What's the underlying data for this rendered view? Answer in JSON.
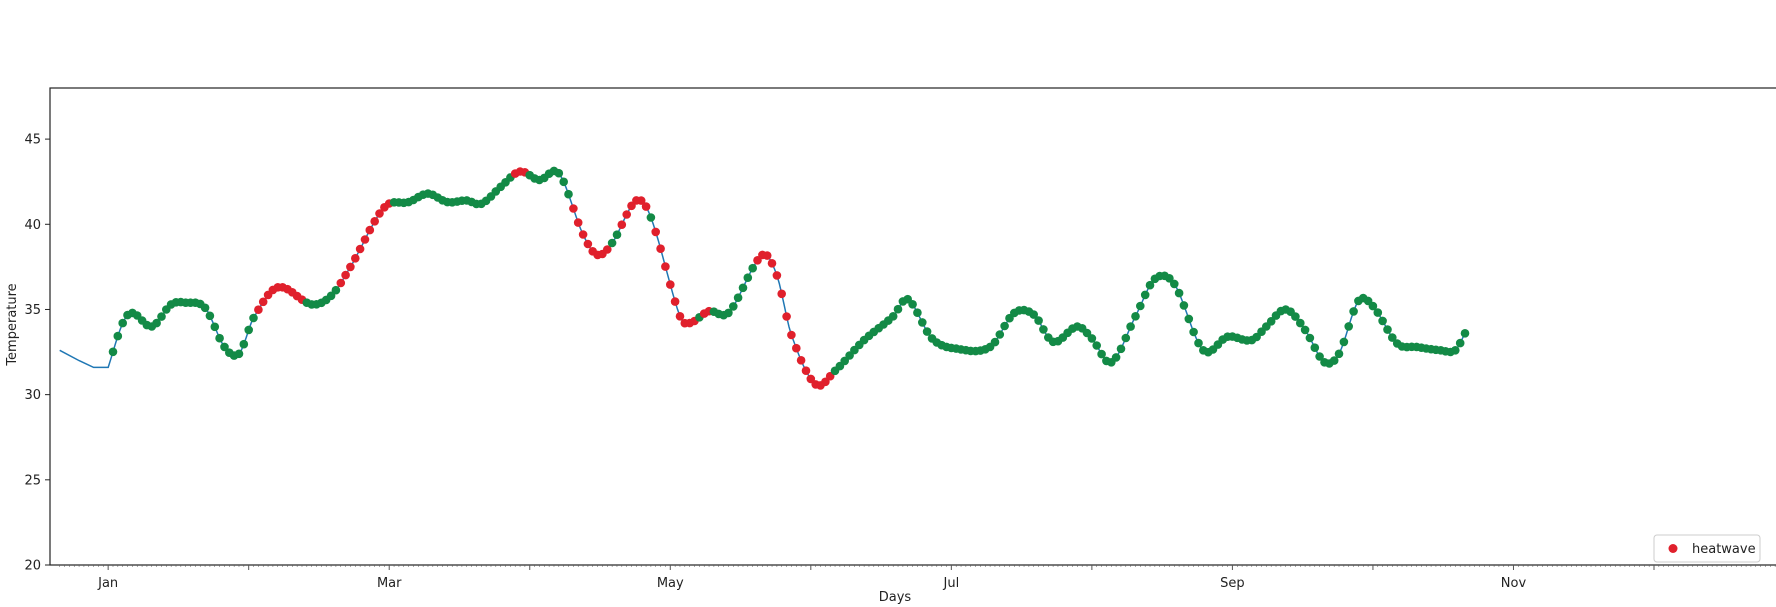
{
  "chart_data": {
    "type": "scatter",
    "title": "",
    "xlabel": "Days",
    "ylabel": "Temperature",
    "ylim": [
      20,
      48
    ],
    "xlim": [
      -12,
      345
    ],
    "x_tick_labels": [
      "Jan",
      "Mar",
      "May",
      "Jul",
      "Sep",
      "Nov"
    ],
    "x_tick_positions": [
      0,
      58,
      116,
      174,
      232,
      290
    ],
    "y_ticks": [
      20,
      25,
      30,
      35,
      40,
      45
    ],
    "legend": {
      "placement": "lower-right",
      "entries": [
        "heatwave"
      ]
    },
    "grid": false,
    "colors": {
      "line": "#1f77b4",
      "normal": "#138a46",
      "heatwave": "#e0202c"
    },
    "line_prefix": {
      "x": [
        -10,
        -6,
        -3,
        0
      ],
      "y": [
        32.6,
        32.0,
        31.6,
        31.6
      ]
    },
    "control_points": [
      [
        0,
        31.6
      ],
      [
        3,
        34.2
      ],
      [
        5,
        34.8
      ],
      [
        9,
        34.0
      ],
      [
        13,
        35.3
      ],
      [
        16,
        35.4
      ],
      [
        20,
        35.1
      ],
      [
        24,
        32.8
      ],
      [
        27,
        32.4
      ],
      [
        30,
        34.5
      ],
      [
        35,
        36.3
      ],
      [
        42,
        35.3
      ],
      [
        46,
        35.8
      ],
      [
        50,
        37.5
      ],
      [
        57,
        41.0
      ],
      [
        62,
        41.3
      ],
      [
        66,
        41.8
      ],
      [
        70,
        41.3
      ],
      [
        74,
        41.4
      ],
      [
        77,
        41.2
      ],
      [
        81,
        42.2
      ],
      [
        85,
        43.1
      ],
      [
        89,
        42.6
      ],
      [
        93,
        43.0
      ],
      [
        98,
        39.4
      ],
      [
        101,
        38.2
      ],
      [
        104,
        38.9
      ],
      [
        109,
        41.4
      ],
      [
        112,
        40.4
      ],
      [
        118,
        34.6
      ],
      [
        120,
        34.2
      ],
      [
        124,
        34.9
      ],
      [
        128,
        34.8
      ],
      [
        135,
        38.2
      ],
      [
        138,
        37.0
      ],
      [
        141,
        33.5
      ],
      [
        146,
        30.6
      ],
      [
        150,
        31.4
      ],
      [
        156,
        33.2
      ],
      [
        162,
        34.6
      ],
      [
        165,
        35.6
      ],
      [
        170,
        33.3
      ],
      [
        175,
        32.7
      ],
      [
        182,
        32.8
      ],
      [
        187,
        34.8
      ],
      [
        191,
        34.7
      ],
      [
        195,
        33.1
      ],
      [
        200,
        34.0
      ],
      [
        203,
        33.3
      ],
      [
        207,
        31.9
      ],
      [
        212,
        34.6
      ],
      [
        216,
        36.8
      ],
      [
        220,
        36.5
      ],
      [
        226,
        32.6
      ],
      [
        231,
        33.4
      ],
      [
        236,
        33.2
      ],
      [
        239,
        34.0
      ],
      [
        243,
        35.0
      ],
      [
        247,
        33.8
      ],
      [
        251,
        31.9
      ],
      [
        254,
        32.4
      ],
      [
        258,
        35.5
      ],
      [
        261,
        35.2
      ],
      [
        266,
        33.0
      ],
      [
        270,
        32.8
      ],
      [
        275,
        32.6
      ],
      [
        278,
        32.6
      ],
      [
        280,
        33.6
      ]
    ],
    "heatwave_intervals": [
      [
        31,
        40
      ],
      [
        48,
        58
      ],
      [
        84,
        86
      ],
      [
        96,
        103
      ],
      [
        106,
        111
      ],
      [
        113,
        121
      ],
      [
        123,
        124
      ],
      [
        134,
        136
      ],
      [
        137,
        149
      ]
    ],
    "dot_x_range": [
      0,
      280
    ]
  }
}
